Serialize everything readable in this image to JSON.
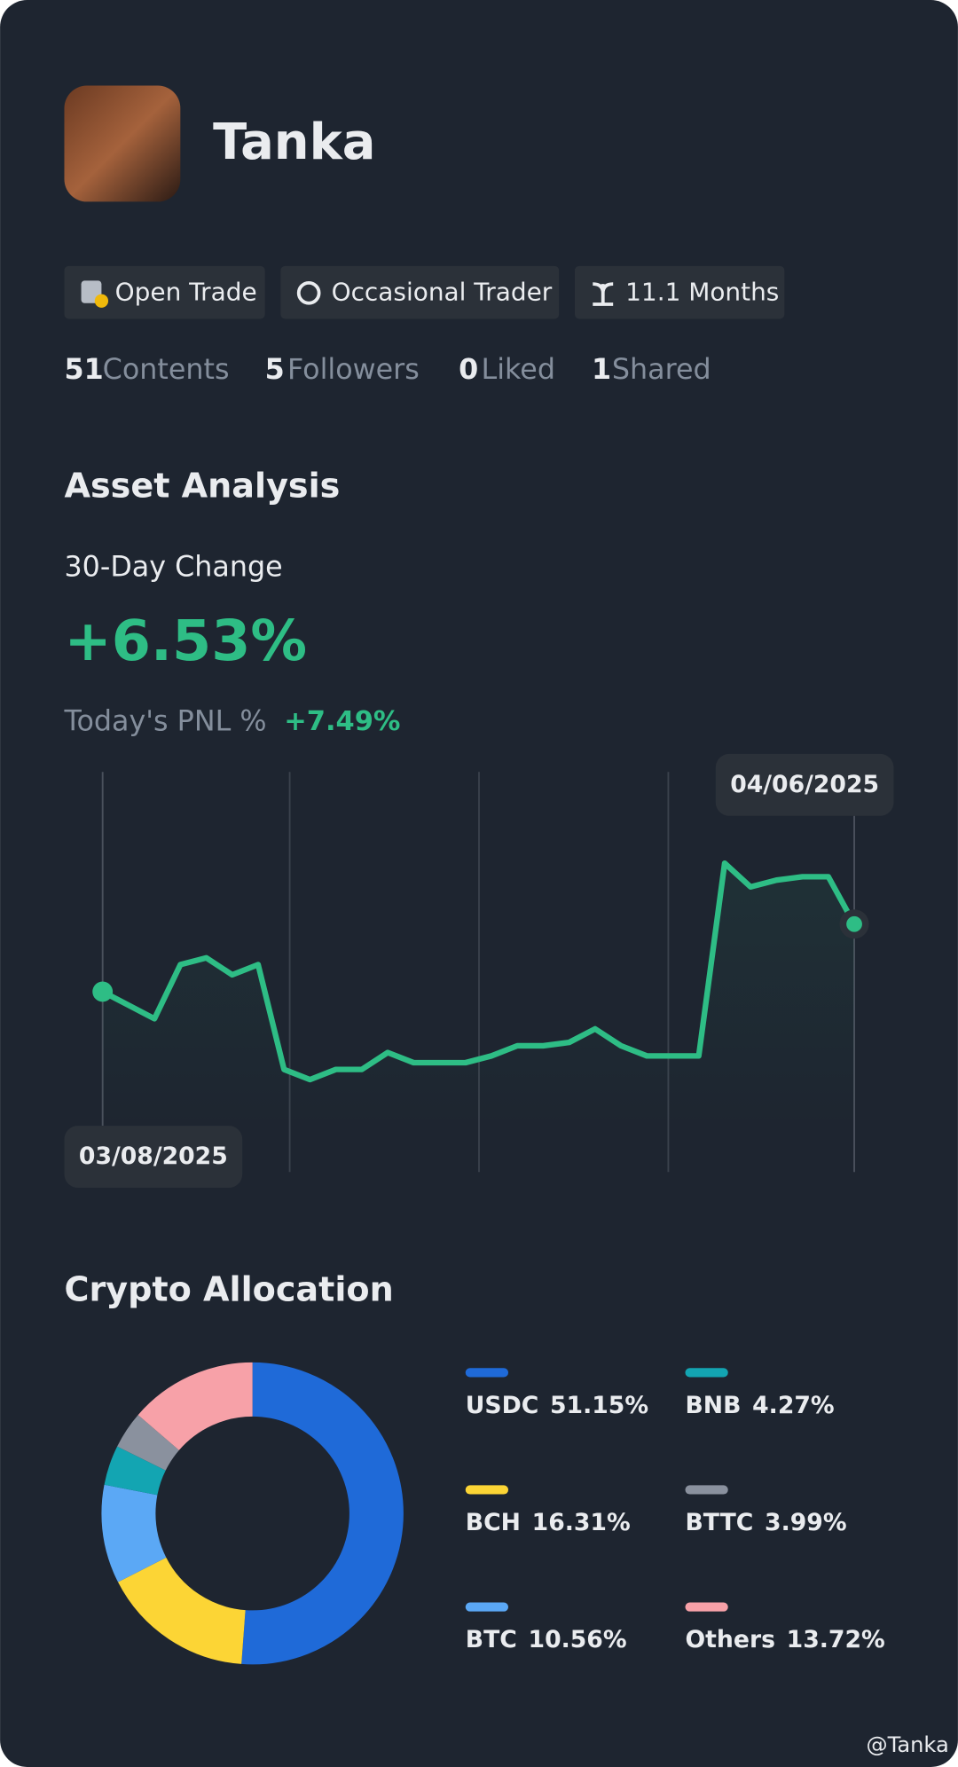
{
  "profile": {
    "name": "Tanka",
    "badges": [
      "Open Trade",
      "Occasional Trader",
      "11.1 Months"
    ],
    "stats": [
      {
        "count": 51,
        "label": "Contents"
      },
      {
        "count": 5,
        "label": "Followers"
      },
      {
        "count": 0,
        "label": "Liked"
      },
      {
        "count": 1,
        "label": "Shared"
      }
    ]
  },
  "asset_analysis": {
    "title": "Asset Analysis",
    "change_label": "30-Day Change",
    "change_value": "+6.53%",
    "pnl_label": "Today's PNL %",
    "pnl_value": "+7.49%"
  },
  "allocation_title": "Crypto Allocation",
  "watermark": "@Tanka",
  "chart_data": [
    {
      "type": "line",
      "color": "#2ebd85",
      "ylim": [
        0,
        100
      ],
      "categories": [
        "03/08/2025",
        null,
        null,
        null,
        null,
        null,
        null,
        null,
        null,
        null,
        null,
        null,
        null,
        null,
        null,
        null,
        null,
        null,
        null,
        null,
        null,
        null,
        null,
        null,
        null,
        null,
        null,
        null,
        null,
        "04/06/2025"
      ],
      "values": [
        40,
        36,
        32,
        48,
        50,
        45,
        48,
        17,
        14,
        17,
        17,
        22,
        19,
        19,
        19,
        21,
        24,
        24,
        25,
        29,
        24,
        21,
        21,
        21,
        78,
        71,
        73,
        74,
        74,
        60
      ]
    },
    {
      "type": "pie",
      "categories": [
        "USDC",
        "BCH",
        "BTC",
        "BNB",
        "BTTC",
        "Others"
      ],
      "values": [
        51.15,
        16.31,
        10.56,
        4.27,
        3.99,
        13.72
      ],
      "value_labels": [
        "51.15%",
        "16.31%",
        "10.56%",
        "4.27%",
        "3.99%",
        "13.72%"
      ],
      "colors": [
        "#1f6ad8",
        "#fcd535",
        "#5ba8f5",
        "#13a5b2",
        "#8a919e",
        "#f7a1a8"
      ]
    }
  ]
}
